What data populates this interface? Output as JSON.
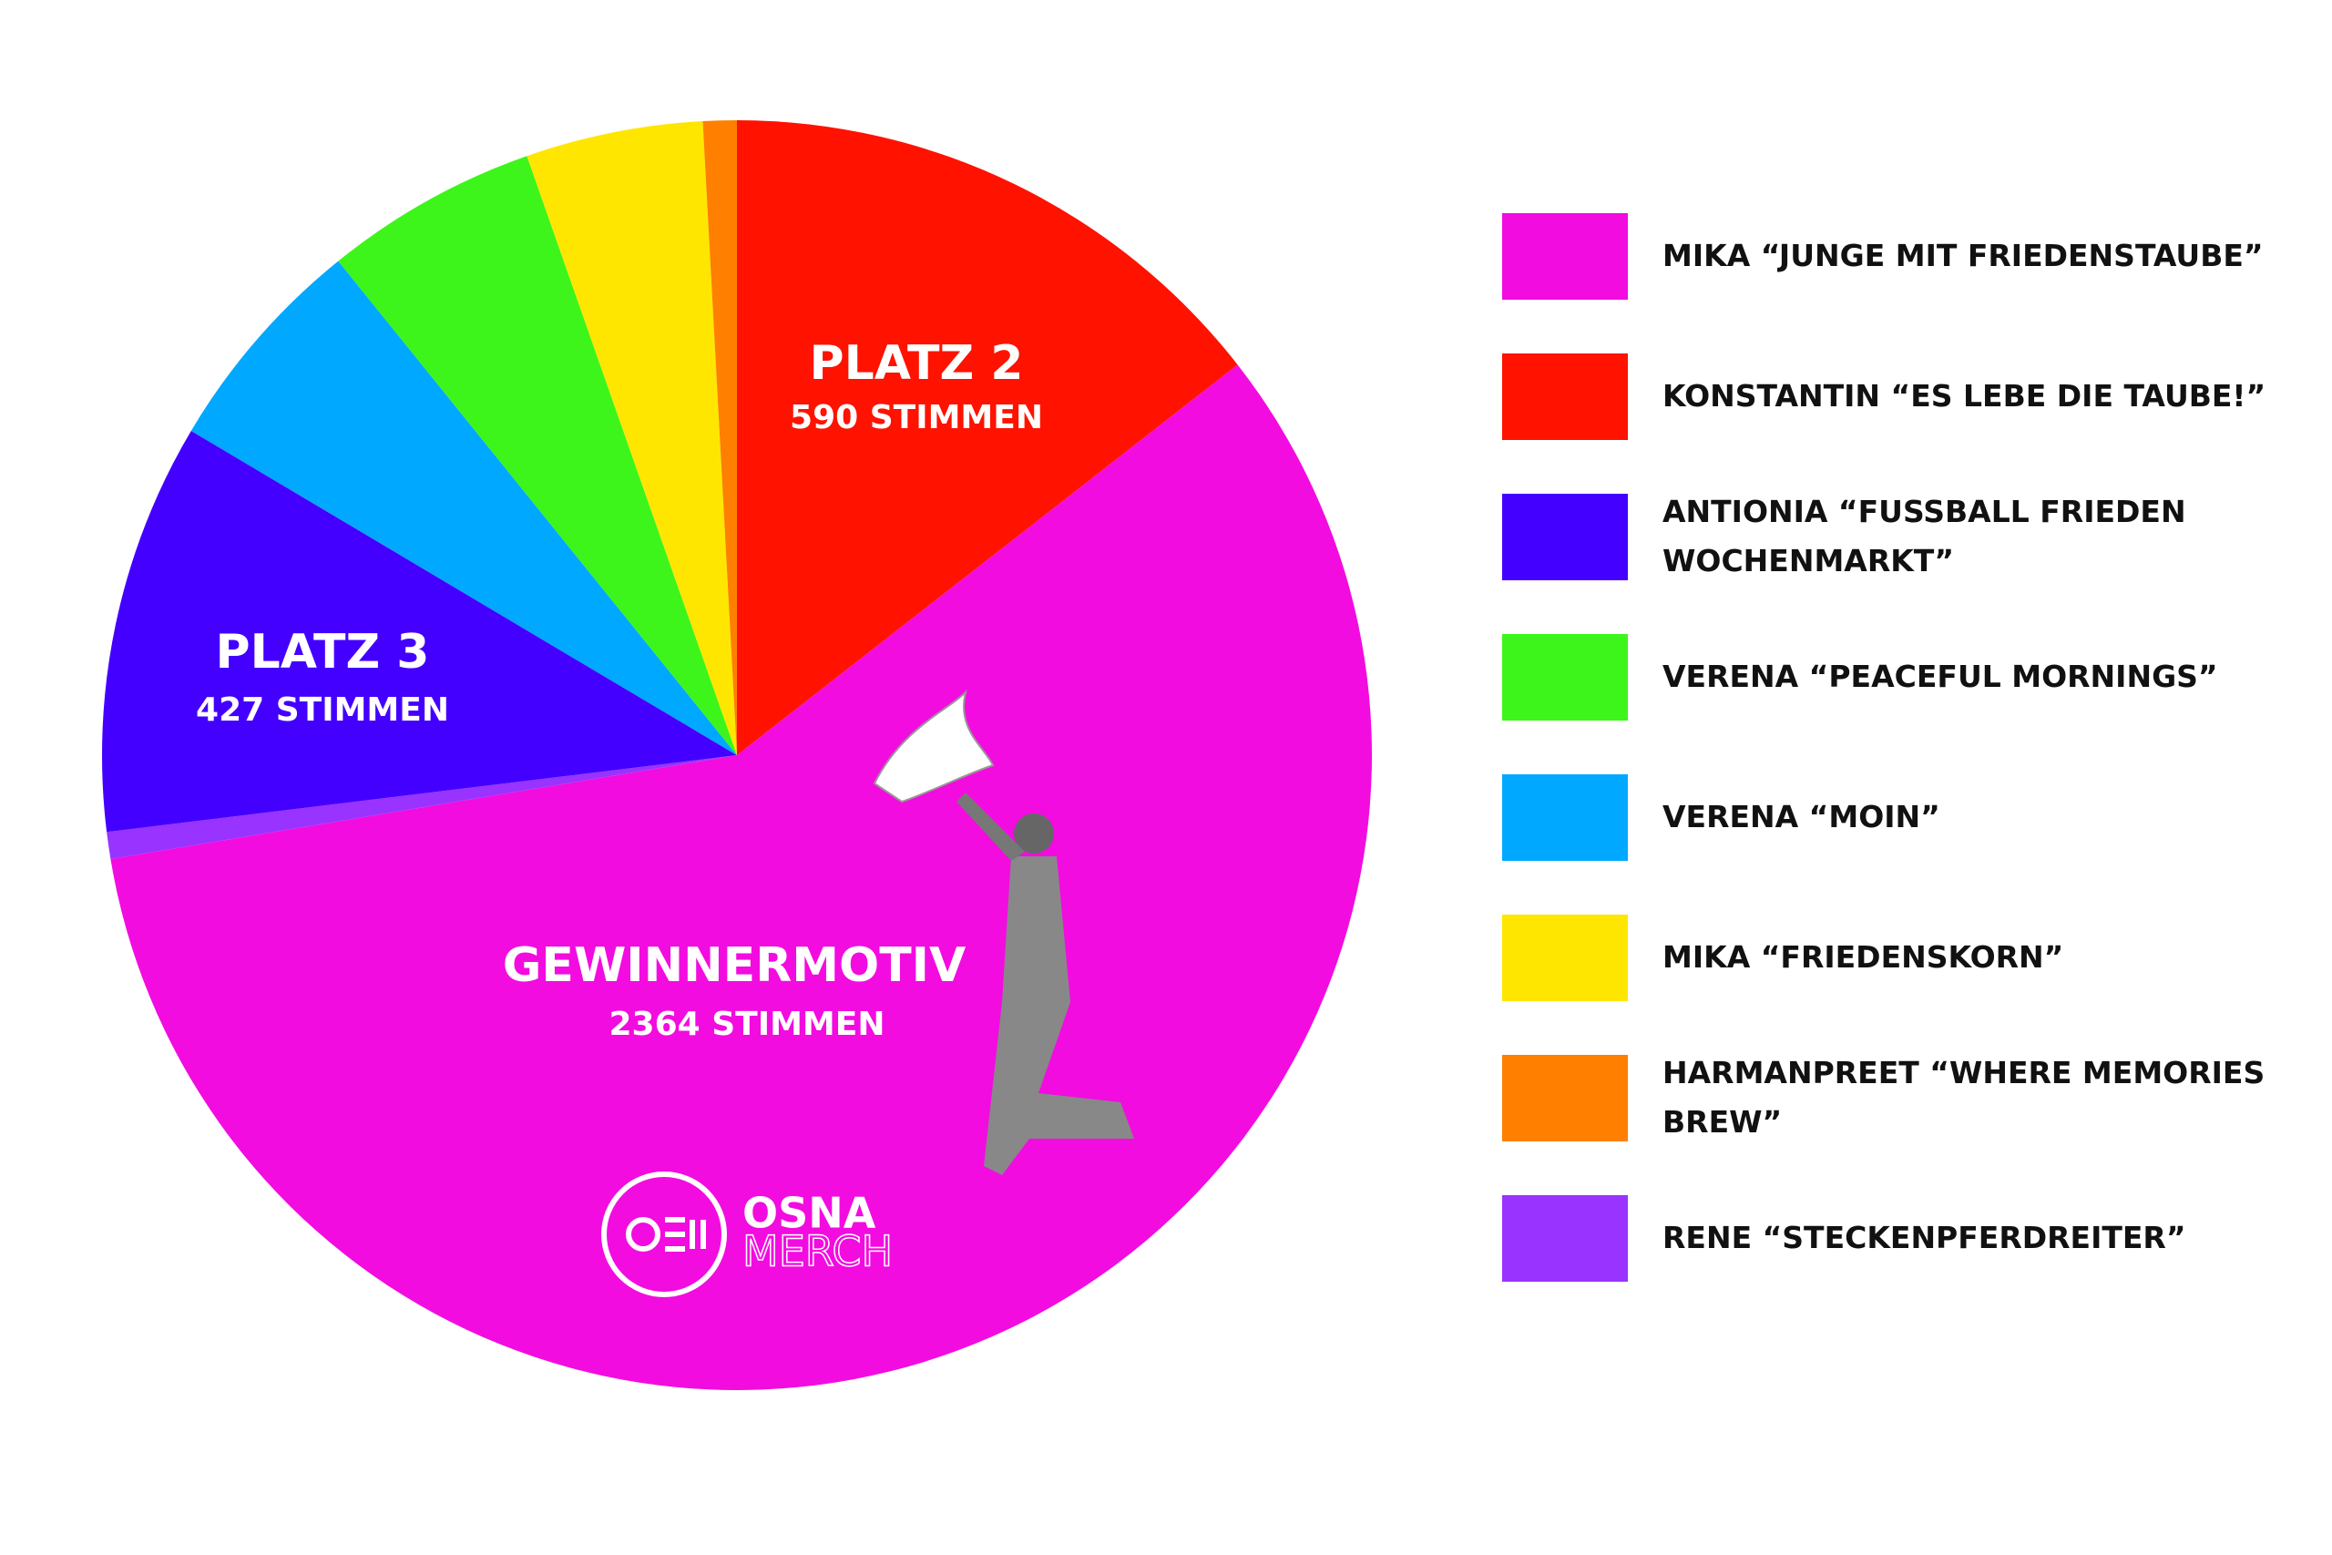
{
  "chart_data": {
    "type": "pie",
    "categories": [
      "MIKA “JUNGE MIT FRIEDENSTAUBE”",
      "KONSTANTIN “ES LEBE DIE TAUBE!”",
      "ANTIONIA “FUSSBALL FRIEDEN WOCHENMARKT”",
      "VERENA “PEACEFUL MORNINGS”",
      "VERENA “MOIN”",
      "MIKA “FRIEDENSKORN”",
      "HARMANPREET “WHERE MEMORIES BREW”",
      "RENE “STECKENPFERDREITER”"
    ],
    "values": [
      2364,
      590,
      427,
      222,
      231,
      184,
      35,
      28
    ],
    "value_labels": [
      "2364 STIMMEN",
      "590 STIMMEN",
      "427 STIMMEN",
      null,
      null,
      null,
      null,
      null
    ],
    "slice_titles": [
      "GEWINNERMOTIV",
      "PLATZ 2",
      "PLATZ 3",
      null,
      null,
      null,
      null,
      null
    ],
    "colors": [
      "#f20ce0",
      "#ff1200",
      "#4400ff",
      "#3df51a",
      "#00a8ff",
      "#ffe600",
      "#ff7f00",
      "#9933ff"
    ],
    "legend": "right",
    "brand": [
      "OSNA",
      "MERCH"
    ]
  }
}
